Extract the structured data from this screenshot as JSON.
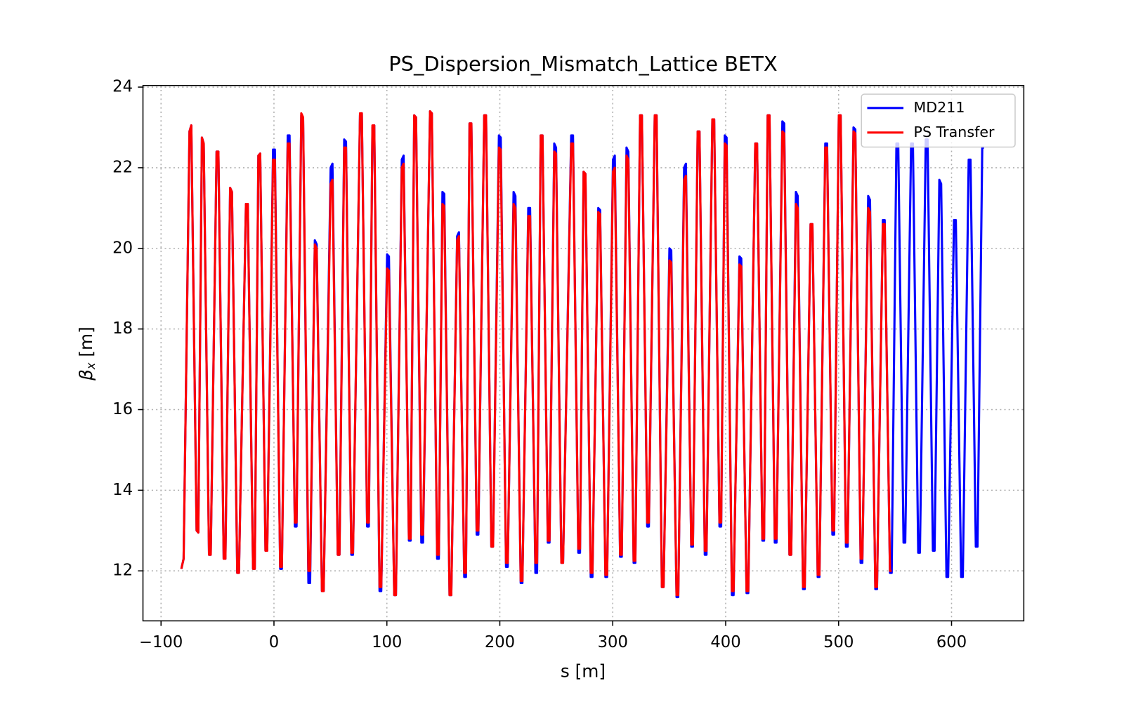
{
  "chart_data": {
    "type": "line",
    "title": "PS_Dispersion_Mismatch_Lattice BETX",
    "xlabel": "s [m]",
    "ylabel": {
      "symbol": "β",
      "subscript": "x",
      "unit": "[m]"
    },
    "xlim": [
      -116,
      664
    ],
    "ylim": [
      10.76,
      24.04
    ],
    "xticks": [
      {
        "value": -100,
        "label": "−100"
      },
      0,
      100,
      200,
      300,
      400,
      500,
      600
    ],
    "yticks": [
      12,
      14,
      16,
      18,
      20,
      22,
      24
    ],
    "grid": true,
    "legend": "upper right",
    "x": [
      -82,
      -80,
      -74.8,
      -73.2,
      -68.5,
      -67,
      -63.8,
      -62.2,
      -57.5,
      -56,
      -50.8,
      -49.2,
      -44.5,
      -43,
      -38.8,
      -37.2,
      -32.5,
      -31,
      -24.8,
      -23.2,
      -18.5,
      -17,
      -13.8,
      -12.2,
      -7.5,
      -6,
      -0.8,
      0.8,
      5.5,
      7,
      12.2,
      13.8,
      18.5,
      20,
      24.2,
      25.8,
      30.5,
      32,
      36.2,
      37.8,
      42.5,
      44,
      50.2,
      51.8,
      56.5,
      58,
      62.2,
      63.8,
      68.5,
      70,
      76.2,
      77.8,
      82.5,
      84,
      87.2,
      88.8,
      93.5,
      95,
      100.2,
      101.8,
      106.5,
      108,
      113.2,
      114.8,
      119.5,
      121,
      124.2,
      125.8,
      130.5,
      132,
      138.2,
      139.8,
      144.5,
      146,
      149.2,
      150.8,
      155.5,
      157,
      162.2,
      163.8,
      168.5,
      170,
      173.2,
      174.8,
      179.5,
      181,
      186.2,
      187.8,
      192.5,
      194,
      199.2,
      200.8,
      205.5,
      207,
      212.2,
      213.8,
      218.5,
      220,
      225.2,
      226.8,
      231.5,
      233,
      236.2,
      237.8,
      242.5,
      244,
      248.2,
      249.8,
      254.5,
      256,
      263.2,
      264.8,
      269.5,
      271,
      274.2,
      275.8,
      280.5,
      282,
      287.2,
      288.8,
      293.5,
      295,
      300.2,
      301.8,
      306.5,
      308,
      312.2,
      313.8,
      318.5,
      320,
      324.2,
      325.8,
      330.5,
      332,
      337.2,
      338.8,
      343.5,
      345,
      350.2,
      351.8,
      356.5,
      358,
      363.2,
      364.8,
      369.5,
      371,
      375.2,
      376.8,
      381.5,
      383,
      388.2,
      389.8,
      394.5,
      396,
      399.2,
      400.8,
      405.5,
      407,
      412.2,
      413.8,
      418.5,
      420,
      426.2,
      427.8,
      432.5,
      434,
      437.2,
      438.8,
      443.5,
      445,
      450.2,
      451.8,
      456.5,
      458,
      462.2,
      463.8,
      468.5,
      470,
      475.2,
      476.8,
      481.5,
      483,
      488.2,
      489.8,
      494.5,
      496,
      500.2,
      501.8,
      506.5,
      508,
      513.2,
      514.8,
      519.5,
      521,
      526.2,
      527.8,
      532.5,
      534,
      539.2,
      540.8,
      545.5,
      547,
      551.2,
      552.8,
      557.5,
      559,
      564.2,
      565.8,
      570.5,
      572,
      577.2,
      578.8,
      583.5,
      585,
      589.2,
      590.8,
      595.5,
      597,
      602.2,
      603.8,
      608.5,
      610,
      615.2,
      616.8,
      621.5,
      623,
      627.2,
      628.8
    ],
    "series": [
      {
        "name": "MD211",
        "color": "#0000ff",
        "values": [
          12.05,
          12.3,
          22.9,
          23.05,
          13.0,
          12.95,
          22.75,
          22.6,
          12.4,
          12.4,
          22.4,
          22.4,
          12.3,
          12.3,
          21.5,
          21.4,
          11.95,
          11.95,
          21.1,
          21.1,
          12.05,
          12.05,
          22.3,
          22.35,
          12.5,
          12.5,
          22.45,
          22.45,
          12.05,
          12.05,
          22.8,
          22.8,
          13.1,
          13.1,
          23.3,
          23.2,
          11.7,
          11.7,
          20.2,
          20.1,
          11.5,
          11.5,
          22.0,
          22.1,
          12.4,
          12.4,
          22.7,
          22.65,
          12.4,
          12.4,
          23.3,
          23.35,
          13.1,
          13.1,
          23.0,
          23.05,
          11.5,
          11.5,
          19.85,
          19.8,
          11.4,
          11.4,
          22.2,
          22.3,
          12.75,
          12.75,
          23.3,
          23.25,
          12.7,
          12.7,
          23.4,
          23.35,
          12.3,
          12.3,
          21.4,
          21.35,
          11.4,
          11.4,
          20.3,
          20.4,
          11.85,
          11.85,
          23.1,
          23.1,
          12.9,
          12.9,
          23.3,
          23.3,
          12.6,
          12.6,
          22.8,
          22.75,
          12.1,
          12.1,
          21.4,
          21.3,
          11.7,
          11.7,
          21.0,
          21.0,
          11.95,
          11.95,
          22.8,
          22.8,
          12.7,
          12.7,
          22.6,
          22.5,
          12.2,
          12.2,
          22.8,
          22.8,
          12.45,
          12.45,
          21.9,
          21.85,
          11.85,
          11.85,
          21.0,
          20.95,
          11.85,
          11.85,
          22.2,
          22.3,
          12.35,
          12.35,
          22.5,
          22.4,
          12.2,
          12.2,
          23.3,
          23.3,
          13.1,
          13.1,
          23.3,
          23.3,
          11.6,
          11.6,
          20.0,
          19.95,
          11.35,
          11.35,
          22.0,
          22.1,
          12.6,
          12.6,
          22.9,
          22.9,
          12.4,
          12.4,
          23.2,
          23.2,
          13.1,
          13.1,
          22.8,
          22.75,
          11.4,
          11.4,
          19.8,
          19.75,
          11.45,
          11.45,
          22.6,
          22.6,
          12.75,
          12.75,
          23.3,
          23.3,
          12.7,
          12.7,
          23.15,
          23.1,
          12.4,
          12.4,
          21.4,
          21.3,
          11.55,
          11.55,
          20.6,
          20.6,
          11.85,
          11.85,
          22.6,
          22.6,
          12.9,
          12.9,
          23.3,
          23.3,
          12.6,
          12.6,
          23.0,
          22.95,
          12.2,
          12.2,
          21.3,
          21.2,
          11.55,
          11.55,
          20.7,
          20.7,
          11.95,
          11.95,
          22.6,
          22.6,
          12.7,
          12.7,
          22.6,
          22.6,
          12.45,
          12.45,
          22.7,
          22.7,
          12.5,
          12.5,
          21.7,
          21.6,
          11.85,
          11.85,
          20.7,
          20.7,
          11.85,
          11.85,
          22.2,
          22.2,
          12.6,
          12.6,
          22.5,
          22.5
        ]
      },
      {
        "name": "PS Transfer",
        "color": "#ff0000",
        "values": [
          12.05,
          12.3,
          22.9,
          23.05,
          13.0,
          12.95,
          22.75,
          22.6,
          12.4,
          12.4,
          22.4,
          22.4,
          12.3,
          12.3,
          21.5,
          21.4,
          11.95,
          11.95,
          21.1,
          21.1,
          12.05,
          12.05,
          22.3,
          22.35,
          12.5,
          12.5,
          22.2,
          22.2,
          12.1,
          12.1,
          22.6,
          22.6,
          13.2,
          13.2,
          23.35,
          23.25,
          12.0,
          12.0,
          20.1,
          20.0,
          11.5,
          11.5,
          21.6,
          21.7,
          12.4,
          12.4,
          22.5,
          22.5,
          12.45,
          12.45,
          23.35,
          23.35,
          13.2,
          13.2,
          23.05,
          23.05,
          11.6,
          11.6,
          19.5,
          19.45,
          11.4,
          11.4,
          22.0,
          22.1,
          12.8,
          12.8,
          23.3,
          23.25,
          12.9,
          12.9,
          23.4,
          23.35,
          12.4,
          12.4,
          21.1,
          21.05,
          11.4,
          11.4,
          20.2,
          20.3,
          11.95,
          11.95,
          23.1,
          23.1,
          13.0,
          13.0,
          23.3,
          23.3,
          12.6,
          12.6,
          22.5,
          22.45,
          12.2,
          12.2,
          21.1,
          21.0,
          11.75,
          11.75,
          20.8,
          20.8,
          12.2,
          12.2,
          22.8,
          22.8,
          12.75,
          12.75,
          22.4,
          22.35,
          12.2,
          12.2,
          22.6,
          22.6,
          12.55,
          12.55,
          21.9,
          21.85,
          11.95,
          11.95,
          20.9,
          20.85,
          11.9,
          11.9,
          21.9,
          22.0,
          12.4,
          12.4,
          22.3,
          22.2,
          12.25,
          12.25,
          23.3,
          23.3,
          13.2,
          13.2,
          23.3,
          23.3,
          11.6,
          11.6,
          19.7,
          19.65,
          11.4,
          11.4,
          21.7,
          21.8,
          12.65,
          12.65,
          22.9,
          22.9,
          12.5,
          12.5,
          23.2,
          23.2,
          13.2,
          13.2,
          22.6,
          22.55,
          11.5,
          11.5,
          19.6,
          19.55,
          11.5,
          11.5,
          22.6,
          22.6,
          12.8,
          12.8,
          23.3,
          23.3,
          12.8,
          12.8,
          22.9,
          22.85,
          12.4,
          12.4,
          21.1,
          21.0,
          11.6,
          11.6,
          20.6,
          20.6,
          11.9,
          11.9,
          22.5,
          22.5,
          13.0,
          13.0,
          23.3,
          23.3,
          12.7,
          12.7,
          22.9,
          22.85,
          12.3,
          12.3,
          21.0,
          20.9,
          11.6,
          11.6,
          20.6,
          20.6,
          12.0,
          12.0,
          null,
          null,
          null,
          null,
          null,
          null,
          null,
          null,
          null,
          null,
          null,
          null,
          null,
          null,
          null,
          null,
          null,
          null,
          null,
          null,
          null,
          null,
          null,
          null,
          null,
          null
        ]
      }
    ]
  }
}
